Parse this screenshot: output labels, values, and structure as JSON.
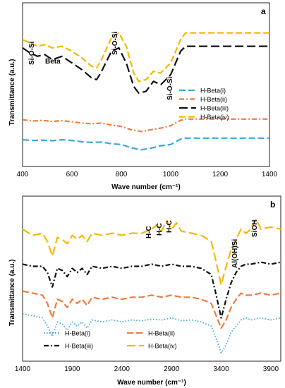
{
  "chart_data": [
    {
      "panel_label": "a",
      "type": "line",
      "xlabel": "Wave number (cm⁻¹)",
      "ylabel": "Transmittance (a.u.)",
      "xlim": [
        400,
        1400
      ],
      "x_ticks": [
        "400",
        "600",
        "800",
        "1000",
        "1200",
        "1400"
      ],
      "legend_position": "right",
      "annotations": [
        "Si-O-Si",
        "Beta",
        "Si-O-Si",
        "Si-O-Si"
      ],
      "series": [
        {
          "name": "H-Beta(i)",
          "color": "#3da8d8",
          "dash": "long",
          "x": [
            400,
            440,
            480,
            520,
            560,
            600,
            640,
            680,
            720,
            760,
            800,
            840,
            880,
            920,
            960,
            1000,
            1020,
            1040,
            1060,
            1100,
            1200,
            1300,
            1400
          ],
          "y": [
            0.8,
            0.78,
            0.79,
            0.77,
            0.8,
            0.78,
            0.74,
            0.72,
            0.73,
            0.68,
            0.66,
            0.56,
            0.5,
            0.55,
            0.62,
            0.66,
            0.74,
            0.82,
            0.85,
            0.85,
            0.85,
            0.85,
            0.85
          ]
        },
        {
          "name": "H-Beta(ii)",
          "color": "#f07b3f",
          "dash": "dashdot",
          "x": [
            400,
            440,
            480,
            520,
            560,
            600,
            640,
            680,
            720,
            760,
            800,
            840,
            880,
            920,
            960,
            1000,
            1020,
            1040,
            1060,
            1100,
            1200,
            1300,
            1400
          ],
          "y": [
            1.4,
            1.36,
            1.38,
            1.35,
            1.37,
            1.34,
            1.3,
            1.28,
            1.3,
            1.24,
            1.2,
            1.1,
            1.05,
            1.1,
            1.15,
            1.22,
            1.3,
            1.38,
            1.42,
            1.42,
            1.42,
            1.42,
            1.42
          ]
        },
        {
          "name": "H-Beta(iii)",
          "color": "#111111",
          "dash": "longdash",
          "x": [
            400,
            430,
            460,
            490,
            520,
            560,
            600,
            640,
            680,
            700,
            720,
            760,
            790,
            820,
            850,
            870,
            900,
            930,
            960,
            1000,
            1020,
            1040,
            1060,
            1100,
            1200,
            1300,
            1400
          ],
          "y": [
            3.55,
            3.4,
            3.3,
            3.35,
            3.2,
            3.3,
            3.1,
            2.9,
            2.65,
            2.6,
            2.85,
            3.45,
            3.55,
            3.1,
            2.4,
            2.2,
            2.25,
            2.55,
            2.45,
            2.75,
            3.1,
            3.45,
            3.6,
            3.6,
            3.6,
            3.6,
            3.6
          ]
        },
        {
          "name": "H-Beta(iv)",
          "color": "#f5b800",
          "dash": "dash",
          "x": [
            400,
            430,
            460,
            490,
            520,
            560,
            600,
            640,
            680,
            700,
            720,
            760,
            790,
            820,
            850,
            870,
            900,
            930,
            960,
            1000,
            1020,
            1040,
            1060,
            1100,
            1200,
            1300,
            1400
          ],
          "y": [
            3.8,
            3.7,
            3.6,
            3.65,
            3.55,
            3.6,
            3.45,
            3.25,
            3.0,
            2.95,
            3.2,
            3.85,
            4.0,
            3.6,
            2.8,
            2.55,
            2.6,
            2.85,
            2.8,
            3.1,
            3.45,
            3.8,
            4.0,
            4.0,
            4.0,
            4.0,
            4.0
          ]
        }
      ],
      "ylim": [
        0.0,
        4.9
      ]
    },
    {
      "panel_label": "b",
      "type": "line",
      "xlabel": "Wave number (cm⁻¹)",
      "ylabel": "Transmittance (a.u.)",
      "xlim": [
        1400,
        4000
      ],
      "x_ticks": [
        "1400",
        "1900",
        "2400",
        "2900",
        "3400",
        "3900"
      ],
      "legend_position": "bottom",
      "annotations": [
        "H-C",
        "H-C",
        "H-C",
        "Al(OH)Si",
        "SiOH"
      ],
      "series": [
        {
          "name": "H-Beta(i)",
          "color": "#3da8d8",
          "dash": "dot",
          "x": [
            1400,
            1500,
            1600,
            1650,
            1700,
            1750,
            1800,
            1850,
            1900,
            1950,
            2000,
            2050,
            2100,
            2200,
            2300,
            2400,
            2500,
            2600,
            2700,
            2800,
            2900,
            3000,
            3100,
            3200,
            3300,
            3350,
            3400,
            3450,
            3500,
            3550,
            3600,
            3650,
            3700,
            3800,
            3900,
            4000
          ],
          "y": [
            1.15,
            1.1,
            1.05,
            0.85,
            0.6,
            0.95,
            0.9,
            0.75,
            0.95,
            0.85,
            0.95,
            0.8,
            1.0,
            0.95,
            1.0,
            0.95,
            1.0,
            0.98,
            1.02,
            1.0,
            1.05,
            0.98,
            1.0,
            0.95,
            0.85,
            0.55,
            0.2,
            0.4,
            0.7,
            0.85,
            1.0,
            1.05,
            1.0,
            1.05,
            1.0,
            1.05
          ]
        },
        {
          "name": "H-Beta(ii)",
          "color": "#f07b3f",
          "dash": "dash",
          "x": [
            1400,
            1500,
            1600,
            1650,
            1700,
            1750,
            1800,
            1850,
            1900,
            1950,
            2000,
            2050,
            2100,
            2200,
            2300,
            2400,
            2500,
            2600,
            2700,
            2800,
            2900,
            3000,
            3100,
            3200,
            3300,
            3350,
            3400,
            3450,
            3500,
            3550,
            3600,
            3650,
            3700,
            3800,
            3900,
            4000
          ],
          "y": [
            1.7,
            1.65,
            1.6,
            1.4,
            1.05,
            1.5,
            1.45,
            1.3,
            1.5,
            1.4,
            1.5,
            1.35,
            1.55,
            1.5,
            1.55,
            1.5,
            1.55,
            1.55,
            1.6,
            1.55,
            1.6,
            1.55,
            1.55,
            1.5,
            1.4,
            1.1,
            0.8,
            1.0,
            1.3,
            1.5,
            1.65,
            1.6,
            1.6,
            1.65,
            1.6,
            1.65
          ]
        },
        {
          "name": "H-Beta(iii)",
          "color": "#111111",
          "dash": "dashdot",
          "x": [
            1400,
            1500,
            1600,
            1650,
            1700,
            1750,
            1800,
            1850,
            1900,
            1950,
            2000,
            2050,
            2100,
            2200,
            2300,
            2400,
            2500,
            2600,
            2700,
            2800,
            2900,
            3000,
            3100,
            3200,
            3300,
            3350,
            3400,
            3450,
            3500,
            3550,
            3600,
            3650,
            3700,
            3800,
            3900,
            4000
          ],
          "y": [
            2.35,
            2.3,
            2.3,
            2.15,
            1.8,
            2.25,
            2.2,
            2.05,
            2.25,
            2.15,
            2.25,
            2.1,
            2.3,
            2.25,
            2.3,
            2.25,
            2.3,
            2.3,
            2.35,
            2.3,
            2.35,
            2.3,
            2.3,
            2.25,
            2.1,
            1.6,
            1.05,
            1.5,
            1.9,
            2.15,
            2.3,
            2.35,
            2.35,
            2.4,
            2.35,
            2.4
          ]
        },
        {
          "name": "H-Beta(iv)",
          "color": "#f5b800",
          "dash": "longdash",
          "x": [
            1400,
            1500,
            1600,
            1650,
            1700,
            1750,
            1800,
            1850,
            1900,
            1950,
            2000,
            2050,
            2100,
            2200,
            2300,
            2400,
            2500,
            2600,
            2700,
            2750,
            2800,
            2850,
            2900,
            2950,
            3000,
            3100,
            3200,
            3300,
            3350,
            3400,
            3450,
            3500,
            3550,
            3600,
            3650,
            3700,
            3750,
            3800,
            3900,
            4000
          ],
          "y": [
            3.2,
            3.05,
            3.1,
            2.9,
            2.55,
            3.0,
            2.95,
            2.85,
            3.05,
            2.95,
            3.05,
            2.9,
            3.1,
            3.05,
            3.1,
            3.05,
            3.1,
            3.1,
            3.2,
            3.3,
            3.15,
            3.4,
            3.2,
            3.35,
            3.15,
            3.1,
            3.05,
            2.9,
            2.4,
            1.85,
            2.3,
            2.7,
            2.95,
            3.2,
            3.1,
            3.2,
            3.45,
            3.2,
            3.25,
            3.2
          ]
        }
      ],
      "ylim": [
        0.0,
        4.0
      ]
    }
  ]
}
